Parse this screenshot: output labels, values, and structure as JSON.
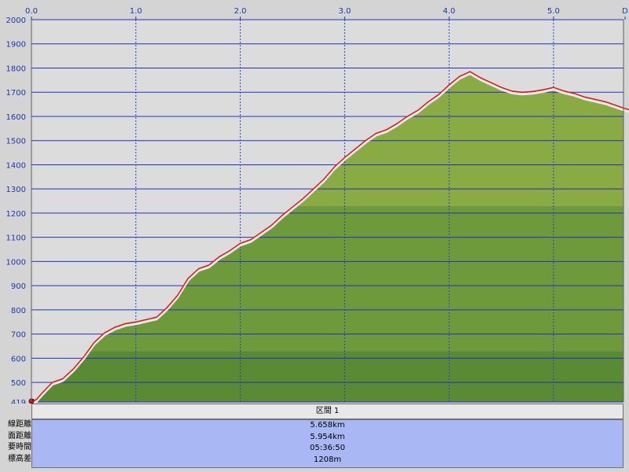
{
  "chart_data": {
    "type": "area",
    "x_unit": "km",
    "x_ticks": [
      "0.0",
      "1.0",
      "2.0",
      "3.0",
      "4.0",
      "5.0",
      "D"
    ],
    "y_ticks": [
      "2000",
      "1900",
      "1800",
      "1700",
      "1600",
      "1500",
      "1400",
      "1300",
      "1200",
      "1100",
      "1000",
      "900",
      "800",
      "700",
      "600",
      "500",
      "419"
    ],
    "xlim": [
      0,
      5.95
    ],
    "ylim": [
      419,
      2000
    ],
    "grid": true,
    "series": [
      {
        "x": [
          0,
          0.05,
          0.1,
          0.2,
          0.3,
          0.4,
          0.5,
          0.6,
          0.7,
          0.8,
          0.9,
          1.0,
          1.1,
          1.2,
          1.3,
          1.4,
          1.5,
          1.6,
          1.7,
          1.8,
          1.9,
          2.0,
          2.1,
          2.2,
          2.3,
          2.4,
          2.5,
          2.6,
          2.7,
          2.8,
          2.9,
          3.0,
          3.1,
          3.2,
          3.3,
          3.4,
          3.5,
          3.6,
          3.7,
          3.8,
          3.9,
          4.0,
          4.1,
          4.2,
          4.3,
          4.4,
          4.5,
          4.6,
          4.7,
          4.8,
          4.9,
          5.0,
          5.1,
          5.2,
          5.3,
          5.4,
          5.5,
          5.6,
          5.7,
          5.8,
          5.95
        ],
        "y": [
          419,
          430,
          455,
          500,
          515,
          555,
          605,
          665,
          705,
          728,
          743,
          750,
          760,
          770,
          810,
          860,
          930,
          970,
          985,
          1020,
          1045,
          1075,
          1090,
          1120,
          1150,
          1190,
          1225,
          1260,
          1300,
          1340,
          1390,
          1430,
          1465,
          1500,
          1530,
          1545,
          1570,
          1600,
          1625,
          1660,
          1690,
          1730,
          1765,
          1785,
          1760,
          1740,
          1720,
          1705,
          1700,
          1703,
          1710,
          1720,
          1705,
          1695,
          1680,
          1670,
          1660,
          1645,
          1630,
          1620,
          1630
        ]
      }
    ]
  },
  "info_panel": {
    "header": "区間 1",
    "rows": [
      {
        "label": "線距離",
        "value": "5.658km"
      },
      {
        "label": "面距離",
        "value": "5.954km"
      },
      {
        "label": "要時間",
        "value": "05:36:50"
      },
      {
        "label": "標高差",
        "value": "1208m"
      }
    ]
  },
  "colors": {
    "background": "#d4d4d4",
    "plot_background": "#dcdcdc",
    "grid_horizontal": "#2233bb",
    "grid_vertical": "#2244cc",
    "fill_light": "#8aaa44",
    "fill_mid": "#6f9a3c",
    "fill_dark": "#5a8a34",
    "profile_line": "#e8121c",
    "shadow_line": "#ececec",
    "tick_text": "#1a3aa8",
    "panel_body": "#a9b7f5"
  }
}
